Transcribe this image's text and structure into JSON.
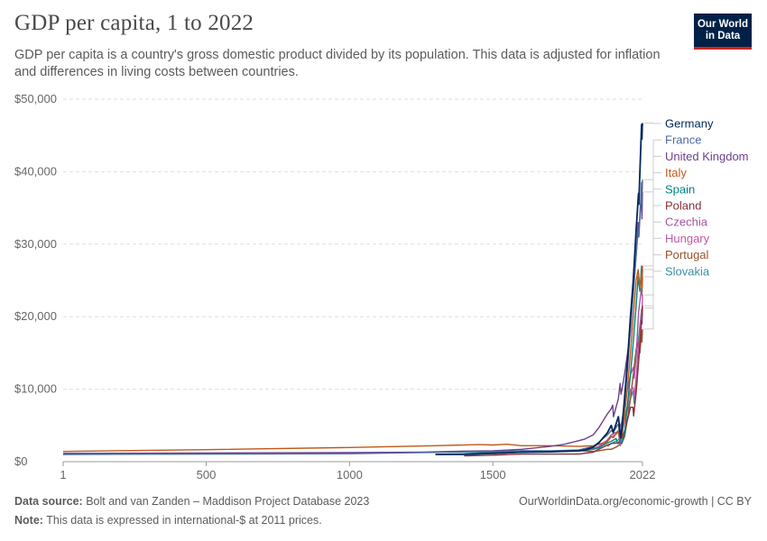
{
  "header": {
    "title": "GDP per capita, 1 to 2022",
    "subtitle": "GDP per capita is a country's gross domestic product divided by its population. This data is adjusted for inflation and differences in living costs between countries.",
    "logo_line1": "Our World",
    "logo_line2": "in Data"
  },
  "footer": {
    "source_label": "Data source:",
    "source_text": "Bolt and van Zanden – Maddison Project Database 2023",
    "note_label": "Note:",
    "note_text": "This data is expressed in international-$ at 2011 prices.",
    "credit": "OurWorldinData.org/economic-growth | CC BY"
  },
  "chart_data": {
    "type": "line",
    "title": "GDP per capita, 1 to 2022",
    "xlabel": "",
    "ylabel": "",
    "xlim": [
      1,
      2022
    ],
    "ylim": [
      0,
      50000
    ],
    "x_ticks": [
      1,
      500,
      1000,
      1500,
      2022
    ],
    "y_ticks": [
      0,
      10000,
      20000,
      30000,
      40000,
      50000
    ],
    "y_tick_labels": [
      "$0",
      "$10,000",
      "$20,000",
      "$30,000",
      "$40,000",
      "$50,000"
    ],
    "grid": true,
    "legend": "right, end-of-line labels",
    "series": [
      {
        "name": "Germany",
        "color": "#00295b",
        "points": [
          [
            1300,
            1000
          ],
          [
            1400,
            1000
          ],
          [
            1500,
            1150
          ],
          [
            1600,
            1300
          ],
          [
            1700,
            1350
          ],
          [
            1800,
            1500
          ],
          [
            1820,
            1600
          ],
          [
            1850,
            2000
          ],
          [
            1870,
            2600
          ],
          [
            1900,
            4000
          ],
          [
            1913,
            5000
          ],
          [
            1920,
            4000
          ],
          [
            1938,
            6200
          ],
          [
            1946,
            3300
          ],
          [
            1950,
            4300
          ],
          [
            1960,
            9000
          ],
          [
            1970,
            14000
          ],
          [
            1980,
            20000
          ],
          [
            1990,
            25000
          ],
          [
            2000,
            32000
          ],
          [
            2008,
            37000
          ],
          [
            2009,
            35500
          ],
          [
            2019,
            46500
          ],
          [
            2020,
            44500
          ],
          [
            2021,
            46000
          ],
          [
            2022,
            46700
          ]
        ]
      },
      {
        "name": "France",
        "color": "#4c6a9c",
        "points": [
          [
            1,
            1000
          ],
          [
            1000,
            1100
          ],
          [
            1500,
            1400
          ],
          [
            1600,
            1500
          ],
          [
            1700,
            1500
          ],
          [
            1800,
            1600
          ],
          [
            1850,
            2100
          ],
          [
            1870,
            2700
          ],
          [
            1900,
            3700
          ],
          [
            1913,
            4300
          ],
          [
            1920,
            4100
          ],
          [
            1938,
            5200
          ],
          [
            1945,
            2700
          ],
          [
            1950,
            5200
          ],
          [
            1960,
            8200
          ],
          [
            1970,
            13000
          ],
          [
            1980,
            18500
          ],
          [
            1990,
            23000
          ],
          [
            2000,
            28500
          ],
          [
            2007,
            32000
          ],
          [
            2009,
            31000
          ],
          [
            2019,
            38500
          ],
          [
            2020,
            35500
          ],
          [
            2022,
            38900
          ]
        ]
      },
      {
        "name": "United Kingdom",
        "color": "#6d3e91",
        "points": [
          [
            1,
            1150
          ],
          [
            500,
            1200
          ],
          [
            1000,
            1250
          ],
          [
            1250,
            1300
          ],
          [
            1400,
            1450
          ],
          [
            1500,
            1500
          ],
          [
            1600,
            1700
          ],
          [
            1700,
            2100
          ],
          [
            1750,
            2400
          ],
          [
            1800,
            2900
          ],
          [
            1820,
            3100
          ],
          [
            1850,
            3700
          ],
          [
            1870,
            4700
          ],
          [
            1900,
            6600
          ],
          [
            1913,
            7300
          ],
          [
            1918,
            7800
          ],
          [
            1921,
            6200
          ],
          [
            1938,
            8700
          ],
          [
            1944,
            10800
          ],
          [
            1947,
            9300
          ],
          [
            1950,
            9800
          ],
          [
            1960,
            12200
          ],
          [
            1970,
            15000
          ],
          [
            1980,
            18000
          ],
          [
            1990,
            23500
          ],
          [
            2000,
            28500
          ],
          [
            2007,
            33000
          ],
          [
            2009,
            31000
          ],
          [
            2019,
            37500
          ],
          [
            2020,
            33500
          ],
          [
            2022,
            37200
          ]
        ]
      },
      {
        "name": "Italy",
        "color": "#c05917",
        "points": [
          [
            1,
            1400
          ],
          [
            500,
            1650
          ],
          [
            1000,
            1950
          ],
          [
            1300,
            2200
          ],
          [
            1450,
            2350
          ],
          [
            1500,
            2300
          ],
          [
            1550,
            2400
          ],
          [
            1600,
            2200
          ],
          [
            1700,
            2200
          ],
          [
            1800,
            2100
          ],
          [
            1850,
            2200
          ],
          [
            1870,
            2400
          ],
          [
            1900,
            2800
          ],
          [
            1913,
            3500
          ],
          [
            1920,
            3300
          ],
          [
            1938,
            4300
          ],
          [
            1945,
            2600
          ],
          [
            1950,
            3500
          ],
          [
            1960,
            6500
          ],
          [
            1970,
            10500
          ],
          [
            1980,
            15000
          ],
          [
            1990,
            20000
          ],
          [
            2000,
            25000
          ],
          [
            2007,
            26500
          ],
          [
            2013,
            24000
          ],
          [
            2019,
            26000
          ],
          [
            2020,
            23500
          ],
          [
            2022,
            27000
          ]
        ]
      },
      {
        "name": "Spain",
        "color": "#00847e",
        "points": [
          [
            1300,
            1000
          ],
          [
            1400,
            1100
          ],
          [
            1500,
            1300
          ],
          [
            1600,
            1500
          ],
          [
            1700,
            1400
          ],
          [
            1800,
            1500
          ],
          [
            1850,
            1700
          ],
          [
            1870,
            1900
          ],
          [
            1900,
            2600
          ],
          [
            1913,
            2800
          ],
          [
            1930,
            3200
          ],
          [
            1936,
            2500
          ],
          [
            1950,
            2600
          ],
          [
            1960,
            4000
          ],
          [
            1970,
            8000
          ],
          [
            1980,
            12000
          ],
          [
            1990,
            16500
          ],
          [
            2000,
            21500
          ],
          [
            2007,
            25500
          ],
          [
            2013,
            23500
          ],
          [
            2019,
            27000
          ],
          [
            2020,
            24000
          ],
          [
            2022,
            26500
          ]
        ]
      },
      {
        "name": "Poland",
        "color": "#883039",
        "points": [
          [
            1400,
            800
          ],
          [
            1500,
            900
          ],
          [
            1600,
            1050
          ],
          [
            1700,
            1050
          ],
          [
            1800,
            1050
          ],
          [
            1850,
            1300
          ],
          [
            1870,
            1700
          ],
          [
            1900,
            2300
          ],
          [
            1913,
            2500
          ],
          [
            1938,
            2600
          ],
          [
            1950,
            3200
          ],
          [
            1960,
            4300
          ],
          [
            1970,
            5800
          ],
          [
            1980,
            7500
          ],
          [
            1989,
            7500
          ],
          [
            1991,
            6300
          ],
          [
            2000,
            9500
          ],
          [
            2010,
            14500
          ],
          [
            2019,
            19500
          ],
          [
            2020,
            19000
          ],
          [
            2022,
            21500
          ]
        ]
      },
      {
        "name": "Czechia",
        "color": "#a2559c",
        "points": [
          [
            1820,
            1400
          ],
          [
            1850,
            1800
          ],
          [
            1870,
            2100
          ],
          [
            1900,
            3000
          ],
          [
            1913,
            3700
          ],
          [
            1938,
            4200
          ],
          [
            1950,
            5500
          ],
          [
            1960,
            8000
          ],
          [
            1970,
            10000
          ],
          [
            1980,
            12000
          ],
          [
            1990,
            13000
          ],
          [
            1993,
            11500
          ],
          [
            2000,
            14500
          ],
          [
            2008,
            20500
          ],
          [
            2019,
            24000
          ],
          [
            2020,
            23000
          ],
          [
            2022,
            25500
          ]
        ]
      },
      {
        "name": "Hungary",
        "color": "#be5aa0",
        "points": [
          [
            1700,
            1350
          ],
          [
            1800,
            1450
          ],
          [
            1850,
            1800
          ],
          [
            1870,
            2100
          ],
          [
            1900,
            2800
          ],
          [
            1913,
            3400
          ],
          [
            1938,
            4000
          ],
          [
            1945,
            2200
          ],
          [
            1950,
            3800
          ],
          [
            1960,
            5800
          ],
          [
            1970,
            7800
          ],
          [
            1980,
            10000
          ],
          [
            1990,
            10200
          ],
          [
            1993,
            8800
          ],
          [
            2000,
            11500
          ],
          [
            2008,
            15500
          ],
          [
            2019,
            21000
          ],
          [
            2020,
            20000
          ],
          [
            2022,
            23000
          ]
        ]
      },
      {
        "name": "Portugal",
        "color": "#9a5129",
        "points": [
          [
            1500,
            1100
          ],
          [
            1600,
            1300
          ],
          [
            1700,
            1400
          ],
          [
            1800,
            1500
          ],
          [
            1850,
            1400
          ],
          [
            1870,
            1500
          ],
          [
            1900,
            1700
          ],
          [
            1913,
            1700
          ],
          [
            1930,
            2000
          ],
          [
            1950,
            2500
          ],
          [
            1960,
            3500
          ],
          [
            1970,
            6000
          ],
          [
            1980,
            8700
          ],
          [
            1990,
            12000
          ],
          [
            2000,
            15500
          ],
          [
            2008,
            16500
          ],
          [
            2013,
            15000
          ],
          [
            2019,
            18000
          ],
          [
            2020,
            16500
          ],
          [
            2022,
            18300
          ]
        ]
      },
      {
        "name": "Slovakia",
        "color": "#3a8fa3",
        "points": [
          [
            1900,
            2100
          ],
          [
            1913,
            2500
          ],
          [
            1938,
            3000
          ],
          [
            1950,
            4000
          ],
          [
            1960,
            5800
          ],
          [
            1970,
            7200
          ],
          [
            1980,
            8700
          ],
          [
            1990,
            9800
          ],
          [
            1993,
            8000
          ],
          [
            2000,
            10500
          ],
          [
            2008,
            17000
          ],
          [
            2019,
            21000
          ],
          [
            2020,
            20000
          ],
          [
            2022,
            21200
          ]
        ]
      }
    ]
  }
}
